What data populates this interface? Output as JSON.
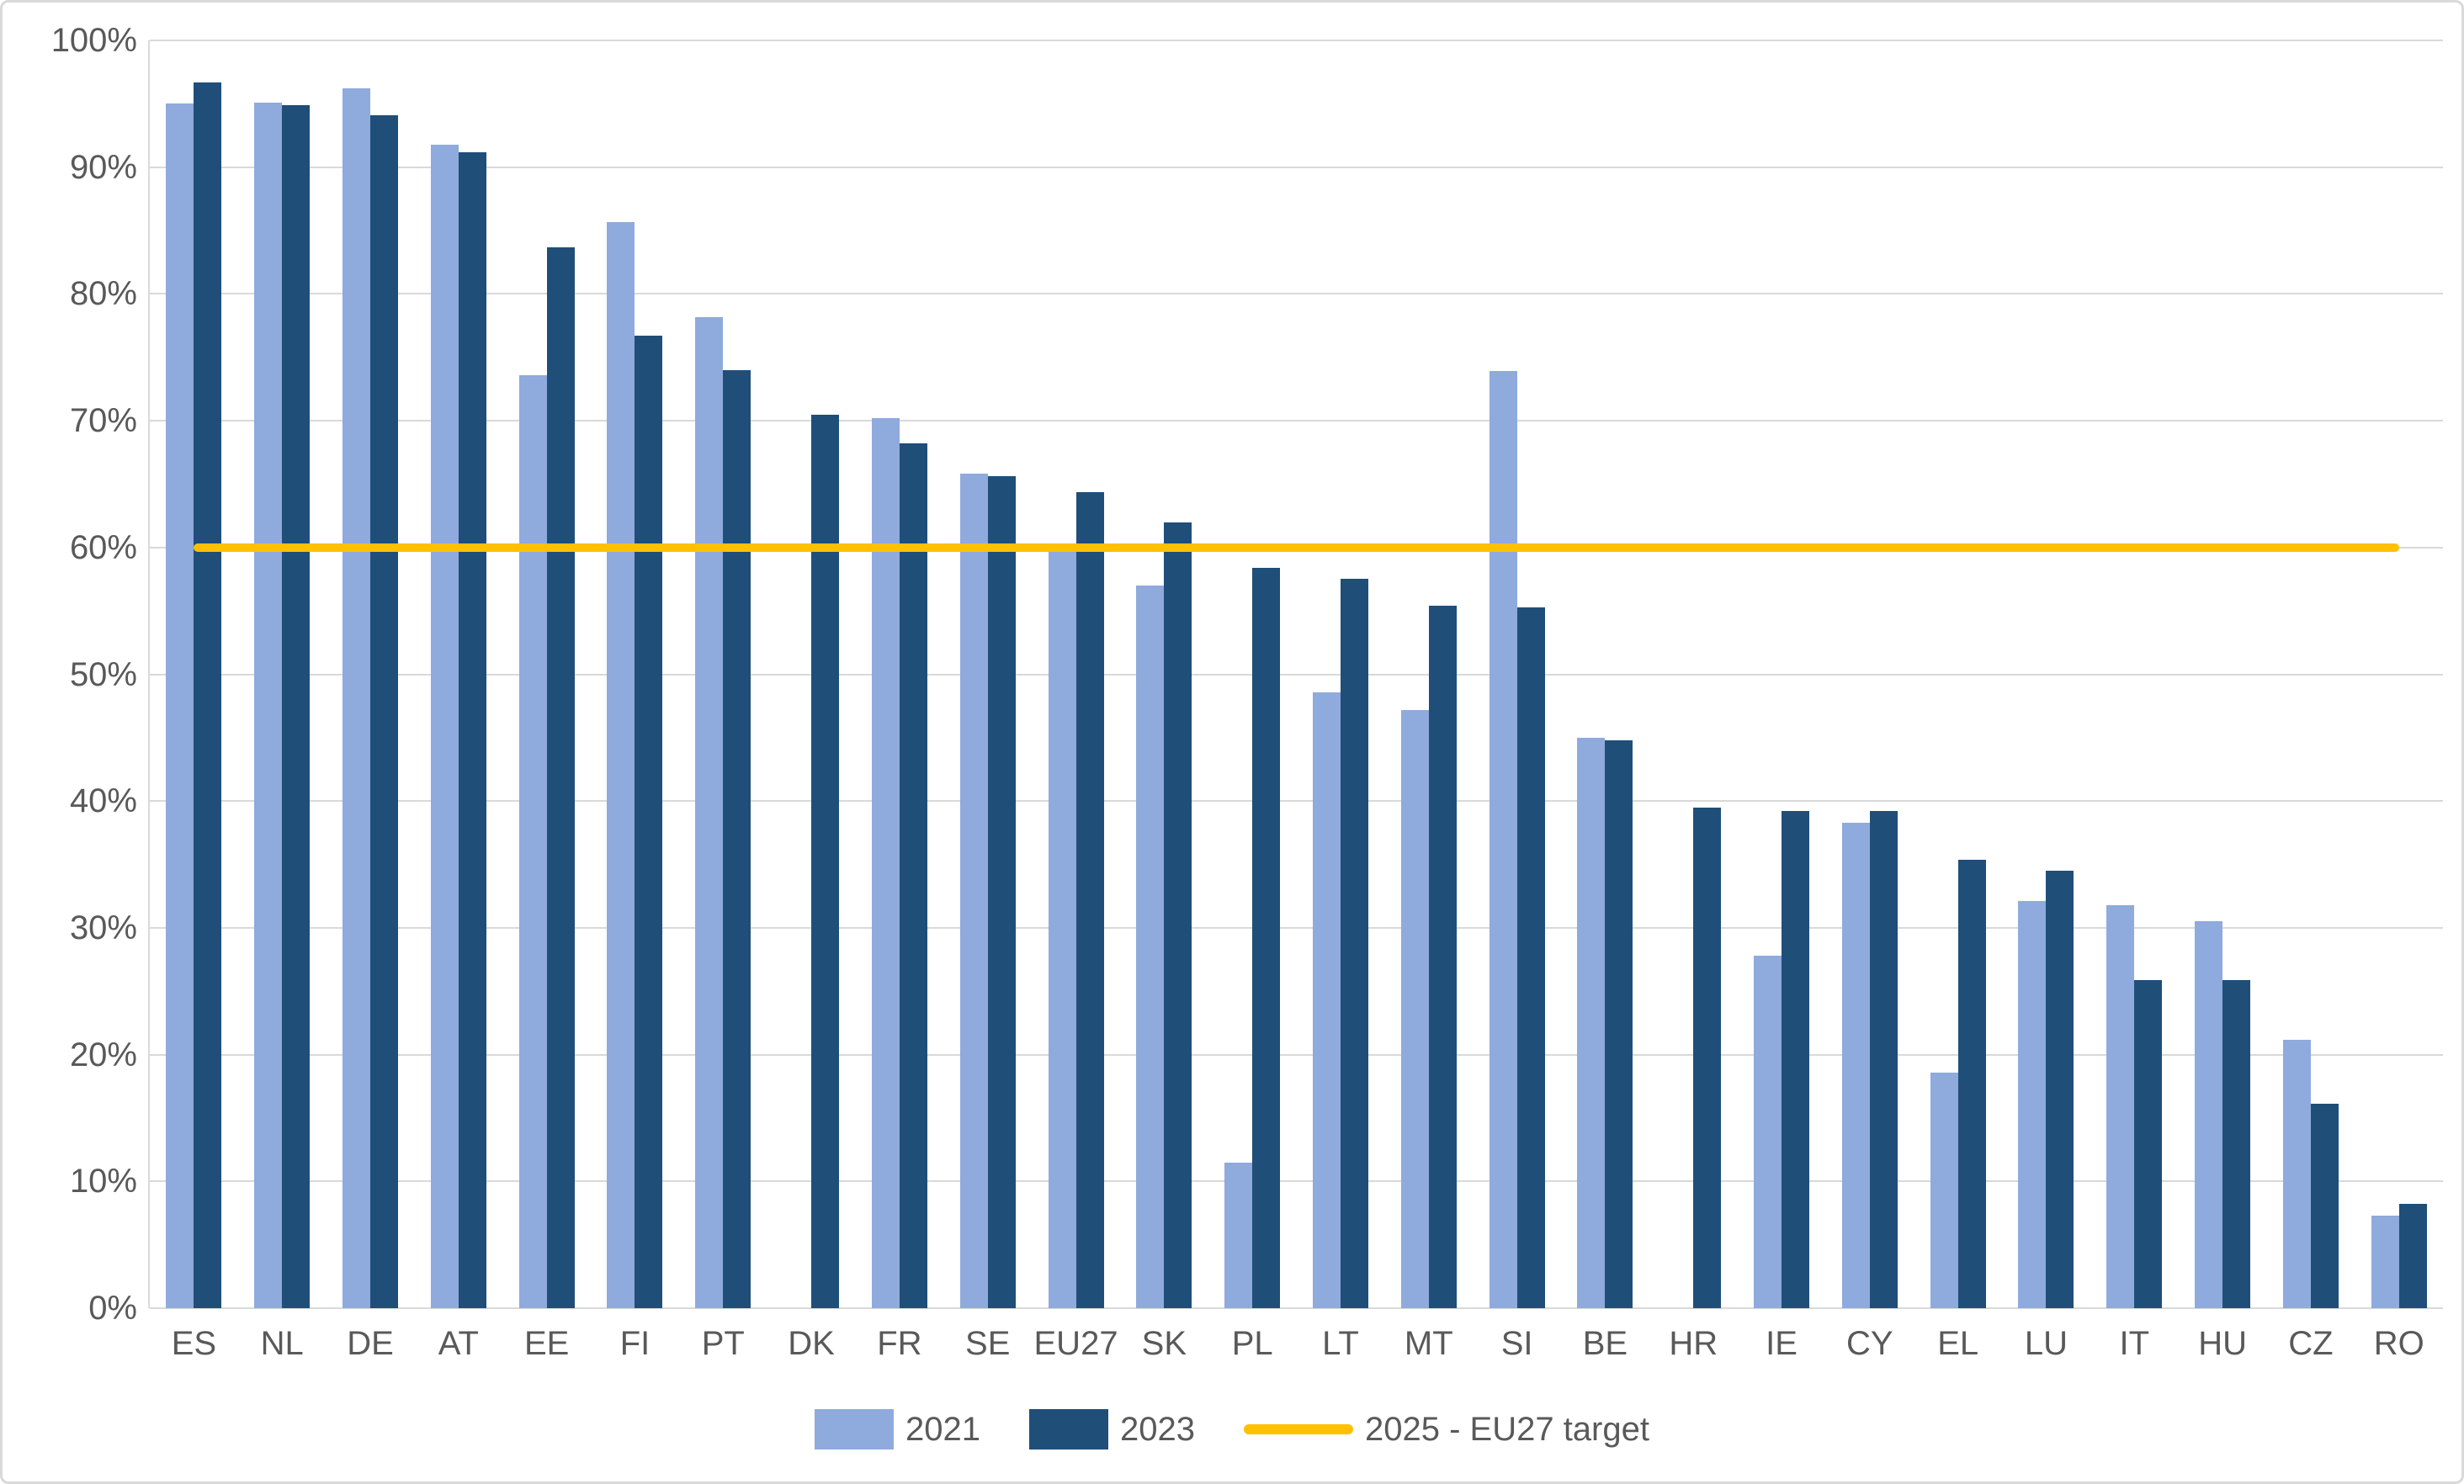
{
  "chart_data": {
    "type": "bar",
    "title": "",
    "unit": "%",
    "categories": [
      "ES",
      "NL",
      "DE",
      "AT",
      "EE",
      "FI",
      "PT",
      "DK",
      "FR",
      "SE",
      "EU27",
      "SK",
      "PL",
      "LT",
      "MT",
      "SI",
      "BE",
      "HR",
      "IE",
      "CY",
      "EL",
      "LU",
      "IT",
      "HU",
      "CZ",
      "RO"
    ],
    "series": [
      {
        "name": "2021",
        "color": "#8FAADC",
        "values": [
          95.0,
          95.1,
          96.2,
          91.8,
          73.6,
          85.7,
          78.2,
          null,
          70.2,
          65.8,
          59.8,
          57.0,
          11.5,
          48.6,
          47.2,
          73.9,
          45.0,
          null,
          27.8,
          38.3,
          18.6,
          32.1,
          31.8,
          30.5,
          21.2,
          7.3
        ]
      },
      {
        "name": "2023",
        "color": "#1F4E79",
        "values": [
          96.7,
          94.9,
          94.1,
          91.2,
          83.7,
          76.7,
          74.0,
          70.5,
          68.2,
          65.6,
          64.4,
          62.0,
          58.4,
          57.5,
          55.4,
          55.3,
          44.8,
          39.5,
          39.2,
          39.2,
          35.4,
          34.5,
          25.9,
          25.9,
          16.1,
          8.2
        ]
      }
    ],
    "target_line": {
      "label": "2025 - EU27 target",
      "value": 60,
      "color": "#FFC000"
    },
    "ylim": [
      0,
      100
    ],
    "ytick_step": 10,
    "ytick_labels": [
      "0%",
      "10%",
      "20%",
      "30%",
      "40%",
      "50%",
      "60%",
      "70%",
      "80%",
      "90%",
      "100%"
    ],
    "xlabel": "",
    "ylabel": "",
    "grid": true,
    "legend_position": "bottom"
  },
  "style_colors": {
    "background": "#FFFFFF",
    "border": "#D9D9D9",
    "gridline": "#D9D9D9",
    "axis_text": "#595959",
    "series_2021": "#8FAADC",
    "series_2023": "#1F4E79",
    "target": "#FFC000"
  }
}
